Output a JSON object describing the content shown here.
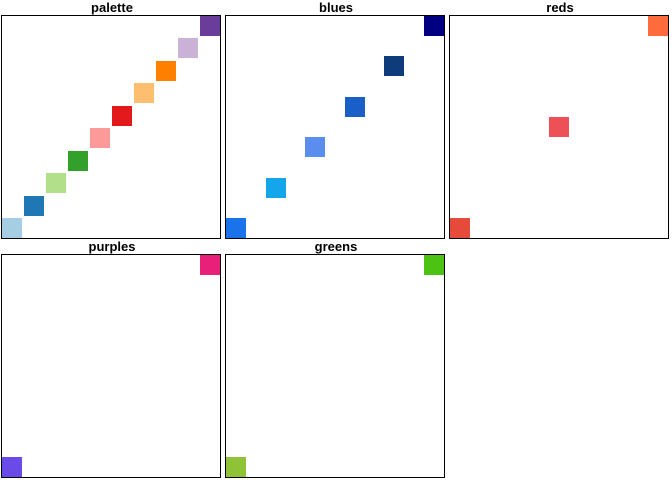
{
  "chart_data": [
    {
      "type": "heatmap",
      "title": "palette",
      "xlim": [
        0.5,
        9.5
      ],
      "ylim": [
        0.5,
        9.5
      ],
      "points": [
        {
          "x": 1,
          "y": 1,
          "color": "#a6cee3"
        },
        {
          "x": 2,
          "y": 2,
          "color": "#1f78b4"
        },
        {
          "x": 3,
          "y": 3,
          "color": "#b2df8a"
        },
        {
          "x": 4,
          "y": 4,
          "color": "#33a02c"
        },
        {
          "x": 5,
          "y": 5,
          "color": "#fb9a99"
        },
        {
          "x": 6,
          "y": 6,
          "color": "#e31a1c"
        },
        {
          "x": 7,
          "y": 7,
          "color": "#fdbf6f"
        },
        {
          "x": 8,
          "y": 8,
          "color": "#ff7f00"
        },
        {
          "x": 9,
          "y": 9,
          "color": "#cab2d6"
        },
        {
          "x": 10,
          "y": 10,
          "color": "#6a3d9a"
        }
      ]
    },
    {
      "type": "heatmap",
      "title": "blues",
      "points": [
        {
          "x": 1,
          "y": 1,
          "color": "#1a73e8"
        },
        {
          "x": 2,
          "y": 2,
          "color": "#14a5ea"
        },
        {
          "x": 3,
          "y": 3,
          "color": "#5a8dee"
        },
        {
          "x": 4,
          "y": 4,
          "color": "#1a5fc8"
        },
        {
          "x": 5,
          "y": 5,
          "color": "#0e3b7a"
        },
        {
          "x": 6,
          "y": 6,
          "color": "#000080"
        }
      ]
    },
    {
      "type": "heatmap",
      "title": "reds",
      "points": [
        {
          "x": 1,
          "y": 1,
          "color": "#e64a3b"
        },
        {
          "x": 2,
          "y": 2,
          "color": "#ee5057"
        },
        {
          "x": 3,
          "y": 3,
          "color": "#ff6b3d"
        }
      ]
    },
    {
      "type": "heatmap",
      "title": "purples",
      "points": [
        {
          "x": 1,
          "y": 1,
          "color": "#6a4be8"
        },
        {
          "x": 2,
          "y": 2,
          "color": "#e8207a"
        }
      ]
    },
    {
      "type": "heatmap",
      "title": "greens",
      "points": [
        {
          "x": 1,
          "y": 1,
          "color": "#8fc236"
        },
        {
          "x": 2,
          "y": 2,
          "color": "#4cc212"
        }
      ]
    }
  ]
}
